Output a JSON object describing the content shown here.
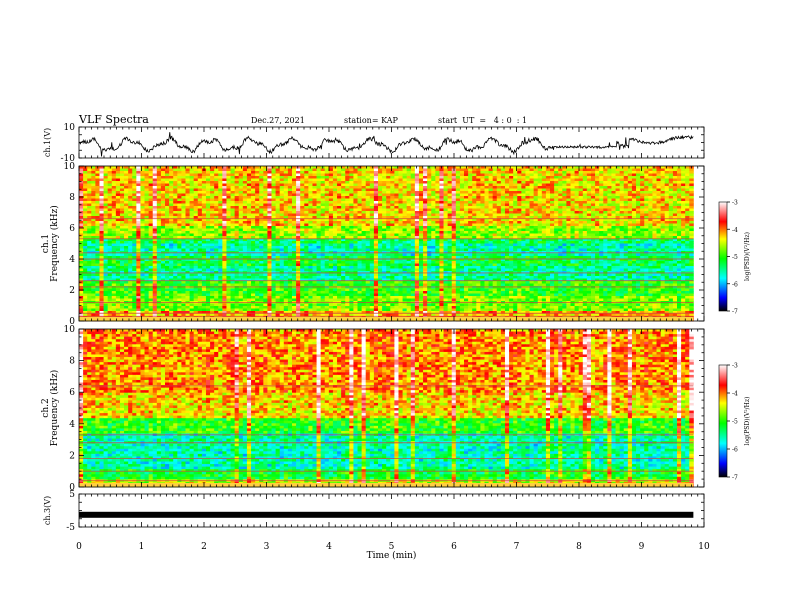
{
  "header": {
    "title": "VLF Spectra",
    "date": "Dec.27, 2021",
    "station": "station= KAP",
    "start": "start  UT  =   4 : 0  : 1"
  },
  "chart_data": [
    {
      "type": "line",
      "panel": "ch1-waveform",
      "ylabel": "ch.1(V)",
      "ylim": [
        -10,
        10
      ],
      "yticks": [
        "10",
        "-10"
      ],
      "xlim": [
        0,
        10
      ],
      "trace_extent_min": [
        0,
        9.83
      ],
      "approx_range_V": [
        -8,
        6
      ]
    },
    {
      "type": "heatmap",
      "panel": "ch1-spectrogram",
      "ylabel": "ch.1\nFrequency (kHz)",
      "ylim": [
        0,
        10
      ],
      "yticks": [
        "0",
        "2",
        "4",
        "6",
        "8",
        "10"
      ],
      "xlim": [
        0,
        10
      ],
      "data_extent_min": [
        0,
        9.83
      ],
      "colorbar": {
        "label": "log(PSD)(V²/Hz)",
        "range": [
          -7,
          -3
        ],
        "ticks": [
          "-3",
          "-4",
          "-5",
          "-6",
          "-7"
        ]
      },
      "notable_bands_kHz": [
        0.3,
        0.5,
        1.2,
        2.2,
        2.6,
        3.1,
        4.0,
        4.4,
        5.3,
        6.6
      ]
    },
    {
      "type": "heatmap",
      "panel": "ch2-spectrogram",
      "ylabel": "ch.2\nFrequency (kHz)",
      "ylim": [
        0,
        10
      ],
      "yticks": [
        "0",
        "2",
        "4",
        "6",
        "8",
        "10"
      ],
      "xlim": [
        0,
        10
      ],
      "data_extent_min": [
        0,
        9.83
      ],
      "colorbar": {
        "label": "log(PSD)(V²/Hz)",
        "range": [
          -7,
          -3
        ],
        "ticks": [
          "-3",
          "-4",
          "-5",
          "-6",
          "-7"
        ]
      },
      "notable_bands_kHz": [
        0.4,
        1.0,
        1.8,
        2.8,
        3.3,
        6.4
      ]
    },
    {
      "type": "line",
      "panel": "ch3-waveform",
      "ylabel": "ch.3(V)",
      "ylim": [
        -5,
        5
      ],
      "yticks": [
        "5",
        "-5"
      ],
      "xlim": [
        0,
        10
      ],
      "trace_extent_min": [
        0,
        9.83
      ],
      "approx_level_V": -1.3
    }
  ],
  "xaxis": {
    "label": "Time (min)",
    "ticks": [
      "0",
      "1",
      "2",
      "3",
      "4",
      "5",
      "6",
      "7",
      "8",
      "9",
      "10"
    ]
  }
}
